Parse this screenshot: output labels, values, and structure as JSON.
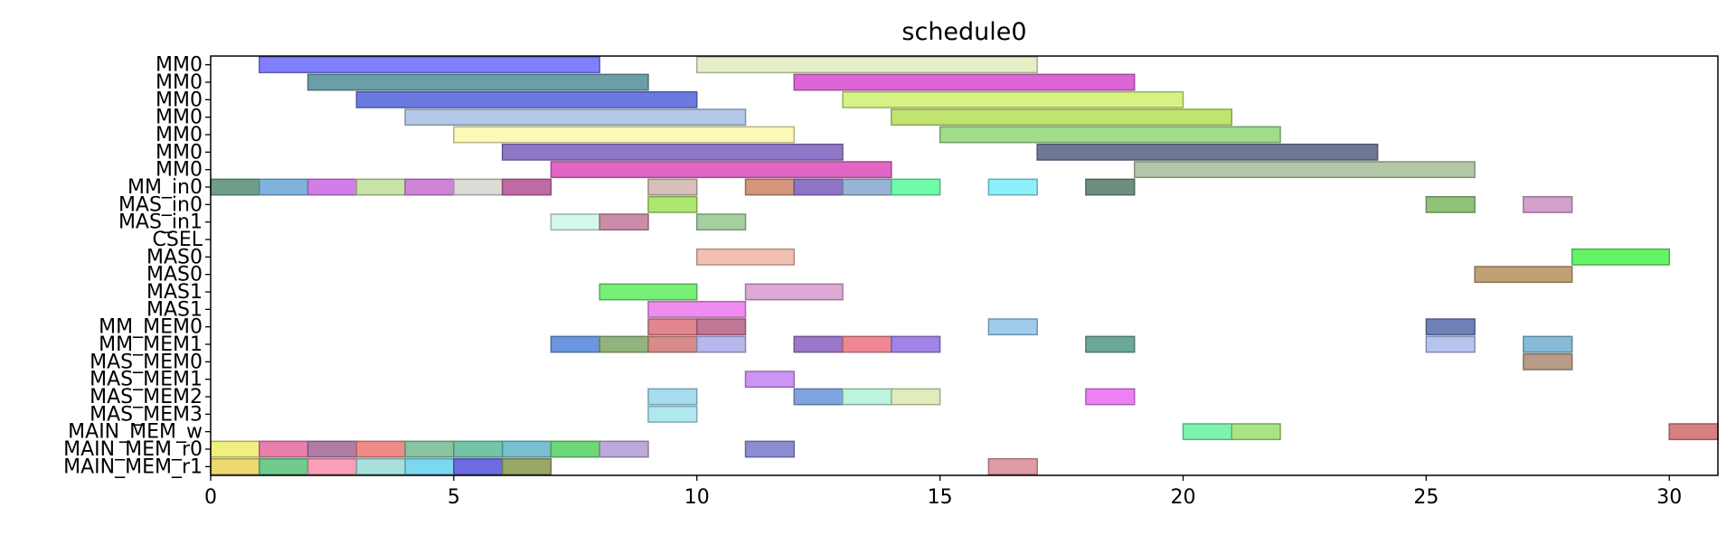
{
  "chart_data": {
    "type": "gantt",
    "title": "schedule0",
    "xlim": [
      0,
      31
    ],
    "xticks": [
      0,
      5,
      10,
      15,
      20,
      25,
      30
    ],
    "grid": false,
    "rows": [
      "MM0",
      "MM0",
      "MM0",
      "MM0",
      "MM0",
      "MM0",
      "MM0",
      "MM_in0",
      "MAS_in0",
      "MAS_in1",
      "CSEL",
      "MAS0",
      "MAS0",
      "MAS1",
      "MAS1",
      "MM_MEM0",
      "MM_MEM1",
      "MAS_MEM0",
      "MAS_MEM1",
      "MAS_MEM2",
      "MAS_MEM3",
      "MAIN_MEM_w",
      "MAIN_MEM_r0",
      "MAIN_MEM_r1"
    ],
    "tasks": [
      {
        "row": 0,
        "start": 1,
        "end": 8,
        "color": "#8080ff"
      },
      {
        "row": 0,
        "start": 10,
        "end": 17,
        "color": "#e6f0c8"
      },
      {
        "row": 1,
        "start": 2,
        "end": 9,
        "color": "#6a9fa8"
      },
      {
        "row": 1,
        "start": 12,
        "end": 19,
        "color": "#dd66d6"
      },
      {
        "row": 2,
        "start": 3,
        "end": 10,
        "color": "#6a7ae0"
      },
      {
        "row": 2,
        "start": 13,
        "end": 20,
        "color": "#d6f284"
      },
      {
        "row": 3,
        "start": 4,
        "end": 11,
        "color": "#b4c8e8"
      },
      {
        "row": 3,
        "start": 14,
        "end": 21,
        "color": "#c0e46e"
      },
      {
        "row": 4,
        "start": 5,
        "end": 12,
        "color": "#fdf7b8"
      },
      {
        "row": 4,
        "start": 15,
        "end": 22,
        "color": "#a0dc8c"
      },
      {
        "row": 5,
        "start": 6,
        "end": 13,
        "color": "#9078c8"
      },
      {
        "row": 5,
        "start": 17,
        "end": 24,
        "color": "#707896"
      },
      {
        "row": 6,
        "start": 7,
        "end": 14,
        "color": "#e266c6"
      },
      {
        "row": 6,
        "start": 19,
        "end": 26,
        "color": "#b4c6a8"
      },
      {
        "row": 7,
        "start": 0,
        "end": 1,
        "color": "#6e9e8a"
      },
      {
        "row": 7,
        "start": 1,
        "end": 2,
        "color": "#80b4dc"
      },
      {
        "row": 7,
        "start": 2,
        "end": 3,
        "color": "#d27ee8"
      },
      {
        "row": 7,
        "start": 3,
        "end": 4,
        "color": "#c8e2a8"
      },
      {
        "row": 7,
        "start": 4,
        "end": 5,
        "color": "#d084d8"
      },
      {
        "row": 7,
        "start": 5,
        "end": 6,
        "color": "#dcdcd4"
      },
      {
        "row": 7,
        "start": 6,
        "end": 7,
        "color": "#c06aa4"
      },
      {
        "row": 7,
        "start": 9,
        "end": 10,
        "color": "#d8c0bc"
      },
      {
        "row": 7,
        "start": 11,
        "end": 12,
        "color": "#d4967c"
      },
      {
        "row": 7,
        "start": 12,
        "end": 13,
        "color": "#9074c8"
      },
      {
        "row": 7,
        "start": 13,
        "end": 14,
        "color": "#98b4d4"
      },
      {
        "row": 7,
        "start": 14,
        "end": 15,
        "color": "#6efca8"
      },
      {
        "row": 7,
        "start": 16,
        "end": 17,
        "color": "#8cf0fc"
      },
      {
        "row": 7,
        "start": 18,
        "end": 19,
        "color": "#6e8e7e"
      },
      {
        "row": 8,
        "start": 9,
        "end": 10,
        "color": "#aee670"
      },
      {
        "row": 8,
        "start": 25,
        "end": 26,
        "color": "#90c27a"
      },
      {
        "row": 8,
        "start": 27,
        "end": 28,
        "color": "#d4a0cc"
      },
      {
        "row": 9,
        "start": 7,
        "end": 8,
        "color": "#d4f8ec"
      },
      {
        "row": 9,
        "start": 8,
        "end": 9,
        "color": "#cc8ca8"
      },
      {
        "row": 9,
        "start": 10,
        "end": 11,
        "color": "#a4d0a0"
      },
      {
        "row": 11,
        "start": 10,
        "end": 12,
        "color": "#f0c0b4"
      },
      {
        "row": 11,
        "start": 28,
        "end": 30,
        "color": "#66f466"
      },
      {
        "row": 12,
        "start": 26,
        "end": 28,
        "color": "#c0a074"
      },
      {
        "row": 13,
        "start": 8,
        "end": 10,
        "color": "#76f076"
      },
      {
        "row": 13,
        "start": 11,
        "end": 13,
        "color": "#dcaad4"
      },
      {
        "row": 14,
        "start": 9,
        "end": 11,
        "color": "#f08cf0"
      },
      {
        "row": 15,
        "start": 9,
        "end": 10,
        "color": "#e0868c"
      },
      {
        "row": 15,
        "start": 10,
        "end": 11,
        "color": "#c07896"
      },
      {
        "row": 15,
        "start": 16,
        "end": 17,
        "color": "#a0ccec"
      },
      {
        "row": 15,
        "start": 25,
        "end": 26,
        "color": "#7080b8"
      },
      {
        "row": 16,
        "start": 7,
        "end": 8,
        "color": "#6c96e0"
      },
      {
        "row": 16,
        "start": 8,
        "end": 9,
        "color": "#90b47c"
      },
      {
        "row": 16,
        "start": 9,
        "end": 10,
        "color": "#d88c88"
      },
      {
        "row": 16,
        "start": 10,
        "end": 11,
        "color": "#b8b8ee"
      },
      {
        "row": 16,
        "start": 12,
        "end": 13,
        "color": "#9c76c8"
      },
      {
        "row": 16,
        "start": 13,
        "end": 14,
        "color": "#f08894"
      },
      {
        "row": 16,
        "start": 14,
        "end": 15,
        "color": "#a084e6"
      },
      {
        "row": 16,
        "start": 18,
        "end": 19,
        "color": "#6ca898"
      },
      {
        "row": 16,
        "start": 25,
        "end": 26,
        "color": "#b8c4f0"
      },
      {
        "row": 16,
        "start": 27,
        "end": 28,
        "color": "#86bcd8"
      },
      {
        "row": 17,
        "start": 27,
        "end": 28,
        "color": "#b89c88"
      },
      {
        "row": 18,
        "start": 11,
        "end": 12,
        "color": "#cc94f4"
      },
      {
        "row": 19,
        "start": 9,
        "end": 10,
        "color": "#a8dcf0"
      },
      {
        "row": 19,
        "start": 12,
        "end": 13,
        "color": "#7ea4e0"
      },
      {
        "row": 19,
        "start": 13,
        "end": 14,
        "color": "#bcf4dc"
      },
      {
        "row": 19,
        "start": 14,
        "end": 15,
        "color": "#e0ecbc"
      },
      {
        "row": 19,
        "start": 18,
        "end": 19,
        "color": "#ec80f4"
      },
      {
        "row": 20,
        "start": 9,
        "end": 10,
        "color": "#b0e8f0"
      },
      {
        "row": 21,
        "start": 20,
        "end": 21,
        "color": "#7cf4b0"
      },
      {
        "row": 21,
        "start": 21,
        "end": 22,
        "color": "#a8e484"
      },
      {
        "row": 21,
        "start": 30,
        "end": 31,
        "color": "#d88080"
      },
      {
        "row": 22,
        "start": 0,
        "end": 1,
        "color": "#f0f080"
      },
      {
        "row": 22,
        "start": 1,
        "end": 2,
        "color": "#e880ac"
      },
      {
        "row": 22,
        "start": 2,
        "end": 3,
        "color": "#b07ca4"
      },
      {
        "row": 22,
        "start": 3,
        "end": 4,
        "color": "#f08c88"
      },
      {
        "row": 22,
        "start": 4,
        "end": 5,
        "color": "#88c4a0"
      },
      {
        "row": 22,
        "start": 5,
        "end": 6,
        "color": "#74c4a8"
      },
      {
        "row": 22,
        "start": 6,
        "end": 7,
        "color": "#78c0d0"
      },
      {
        "row": 22,
        "start": 7,
        "end": 8,
        "color": "#6cd878"
      },
      {
        "row": 22,
        "start": 8,
        "end": 9,
        "color": "#bcaadc"
      },
      {
        "row": 22,
        "start": 11,
        "end": 12,
        "color": "#8c8ed4"
      },
      {
        "row": 23,
        "start": 0,
        "end": 1,
        "color": "#ecd870"
      },
      {
        "row": 23,
        "start": 1,
        "end": 2,
        "color": "#70cc8c"
      },
      {
        "row": 23,
        "start": 2,
        "end": 3,
        "color": "#f8a0b8"
      },
      {
        "row": 23,
        "start": 3,
        "end": 4,
        "color": "#a8e0dc"
      },
      {
        "row": 23,
        "start": 4,
        "end": 5,
        "color": "#7cd8f0"
      },
      {
        "row": 23,
        "start": 5,
        "end": 6,
        "color": "#6c6ce0"
      },
      {
        "row": 23,
        "start": 6,
        "end": 7,
        "color": "#98a868"
      },
      {
        "row": 23,
        "start": 16,
        "end": 17,
        "color": "#e09ca4"
      }
    ]
  }
}
